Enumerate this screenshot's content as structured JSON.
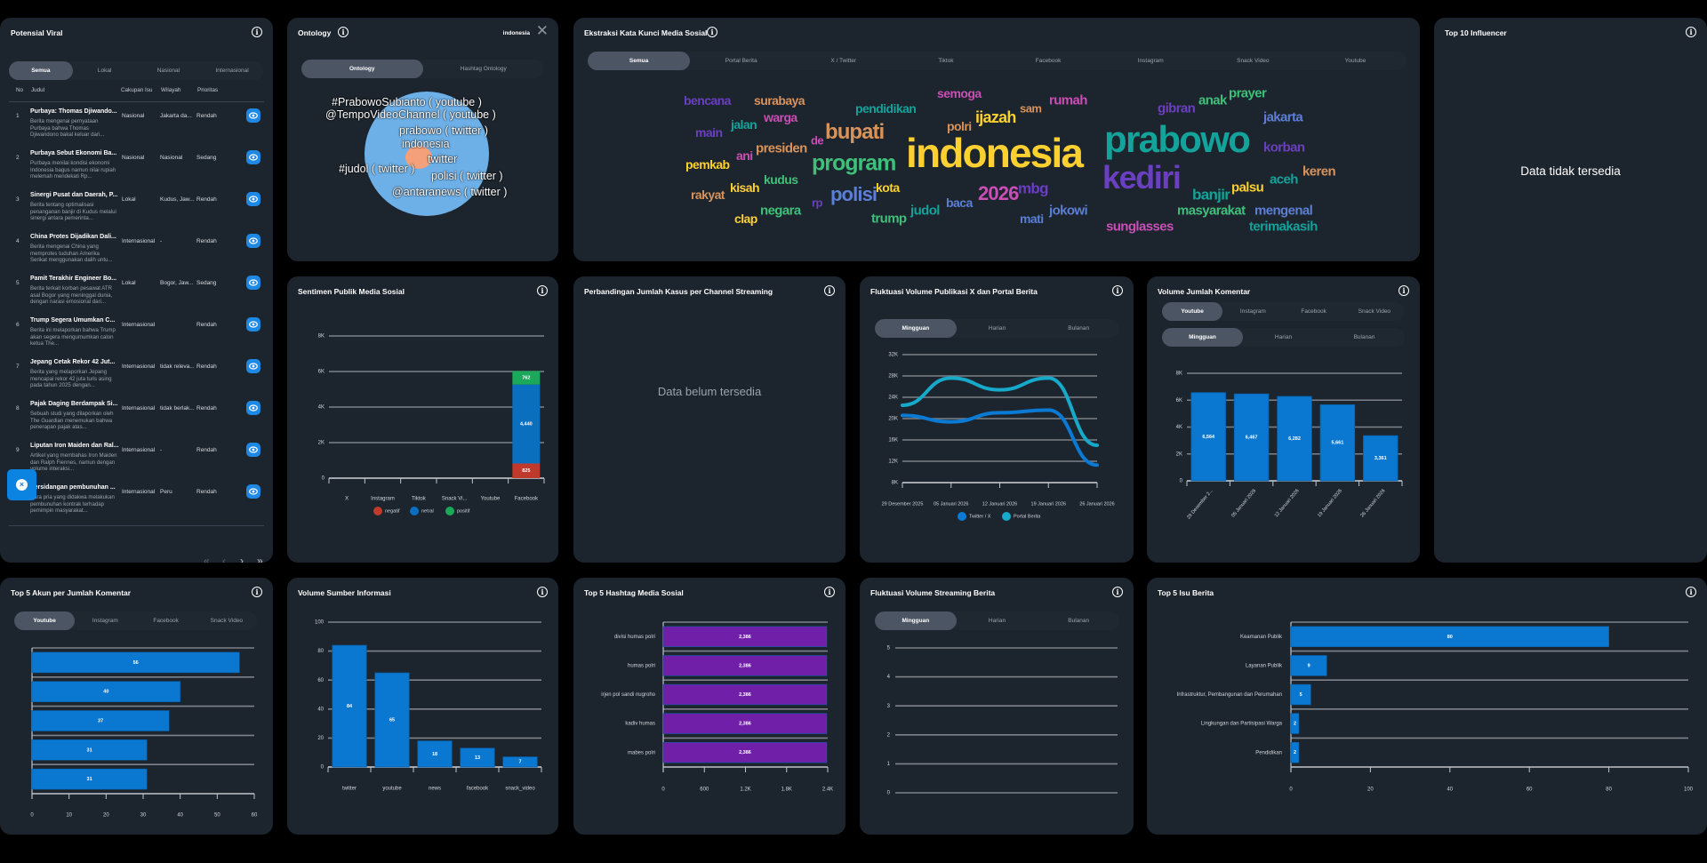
{
  "potensial_viral": {
    "title": "Potensial Viral",
    "tabs": [
      "Semua",
      "Lokal",
      "Nasional",
      "Internasional"
    ],
    "columns": [
      "No",
      "Judul",
      "Cakupan Isu",
      "Wilayah",
      "Prioritas"
    ],
    "rows": [
      {
        "no": "1",
        "title": "Purbaya: Thomas Djiwando...",
        "desc": "Berita mengenai pernyataan Purbaya bahwa Thomas Djiwandono bakal keluar dari...",
        "cakupan": "Nasional",
        "wilayah": "Jakarta da...",
        "prioritas": "Rendah"
      },
      {
        "no": "2",
        "title": "Purbaya Sebut Ekonomi Ba...",
        "desc": "Purbaya menilai kondisi ekonomi Indonesia bagus namun nilai rupiah melemah mendekati Rp...",
        "cakupan": "Nasional",
        "wilayah": "Nasional",
        "prioritas": "Sedang"
      },
      {
        "no": "3",
        "title": "Sinergi Pusat dan Daerah, P...",
        "desc": "Berita tentang optimalisasi penanganan banjir di Kudus melalui sinergi antara pemerinta...",
        "cakupan": "Lokal",
        "wilayah": "Kudus, Jaw...",
        "prioritas": "Rendah"
      },
      {
        "no": "4",
        "title": "China Protes Dijadikan Dali...",
        "desc": "Berita mengenai China yang memprotes tuduhan Amerika Serikat menggunakan dalih untu...",
        "cakupan": "Internasional",
        "wilayah": "-",
        "prioritas": "Rendah"
      },
      {
        "no": "5",
        "title": "Pamit Terakhir Engineer Bo...",
        "desc": "Berita terkait korban pesawat ATR asal Bogor yang meninggal dunia, dengan narasi emosional dari...",
        "cakupan": "Lokal",
        "wilayah": "Bogor, Jaw...",
        "prioritas": "Sedang"
      },
      {
        "no": "6",
        "title": "Trump Segera Umumkan C...",
        "desc": "Berita ini melaporkan bahwa Trump akan segera mengumumkan calon ketua The...",
        "cakupan": "Internasional",
        "wilayah": "",
        "prioritas": "Rendah"
      },
      {
        "no": "7",
        "title": "Jepang Cetak Rekor 42 Jut...",
        "desc": "Berita yang melaporkan Jepang mencapai rekor 42 juta turis asing pada tahun 2025 dengan...",
        "cakupan": "Internasional",
        "wilayah": "tidak releva...",
        "prioritas": "Rendah"
      },
      {
        "no": "8",
        "title": "Pajak Daging Berdampak Si...",
        "desc": "Sebuah studi yang dilaporkan oleh The Guardian menemukan bahwa penerapan pajak atas...",
        "cakupan": "Internasional",
        "wilayah": "tidak berlak...",
        "prioritas": "Rendah"
      },
      {
        "no": "9",
        "title": "Liputan Iron Maiden dan Ral...",
        "desc": "Artikel yang membahas Iron Maiden dan Ralph Fiennes, namun dengan volume interaksi...",
        "cakupan": "Internasional",
        "wilayah": "-",
        "prioritas": "Rendah"
      },
      {
        "no": "10",
        "title": "Persidangan pembunuhan ...",
        "desc": "Para pria yang didakwa melakukan pembunuhan kontrak terhadap pemimpin masyarakat...",
        "cakupan": "Internasional",
        "wilayah": "Peru",
        "prioritas": "Rendah"
      }
    ],
    "pagination": {
      "first": "«",
      "prev": "‹",
      "next": "›",
      "last": "»"
    }
  },
  "ontology": {
    "title": "Ontology",
    "keyword": "indonesia",
    "tabs": [
      "Ontology",
      "Hashtag Ontology"
    ],
    "labels": [
      "#PrabowoSubianto ( youtube )",
      "@TempoVideoChannel ( youtube )",
      "prabowo ( twitter )",
      "indonesia",
      "twitter",
      "#judol ( twitter )",
      "polisi ( twitter )",
      "@antaranews ( twitter )"
    ],
    "colors": {
      "outer": "#6db0e8",
      "inner": "#f4a07a"
    }
  },
  "ekstraksi": {
    "title": "Ekstraksi Kata Kunci Media Sosial",
    "tabs": [
      "Semua",
      "Portal Berita",
      "X / Twitter",
      "Tiktok",
      "Facebook",
      "Instagram",
      "Snack Video",
      "Youtube"
    ],
    "words": [
      {
        "text": "bencana",
        "color": "#6a3fc0"
      },
      {
        "text": "surabaya",
        "color": "#d9935a"
      },
      {
        "text": "pendidikan",
        "color": "#14a39a"
      },
      {
        "text": "semoga",
        "color": "#c94fb7"
      },
      {
        "text": "sam",
        "color": "#d9935a"
      },
      {
        "text": "rumah",
        "color": "#c94fb7"
      },
      {
        "text": "warga",
        "color": "#c94fb7"
      },
      {
        "text": "jalan",
        "color": "#14a39a"
      },
      {
        "text": "ijazah",
        "color": "#fdd032"
      },
      {
        "text": "polri",
        "color": "#d9935a"
      },
      {
        "text": "main",
        "color": "#6a3fc0"
      },
      {
        "text": "bupati",
        "color": "#d9935a"
      },
      {
        "text": "de",
        "color": "#c94fb7"
      },
      {
        "text": "presiden",
        "color": "#d9935a"
      },
      {
        "text": "indonesia",
        "color": "#fdd032"
      },
      {
        "text": "ani",
        "color": "#c94fb7"
      },
      {
        "text": "program",
        "color": "#3fc07a"
      },
      {
        "text": "pemkab",
        "color": "#fdd032"
      },
      {
        "text": "kudus",
        "color": "#3fc07a"
      },
      {
        "text": "kisah",
        "color": "#fdd032"
      },
      {
        "text": "rakyat",
        "color": "#d9935a"
      },
      {
        "text": "polisi",
        "color": "#5b7fd6"
      },
      {
        "text": "kota",
        "color": "#fdd032"
      },
      {
        "text": "2026",
        "color": "#c94fb7"
      },
      {
        "text": "mbg",
        "color": "#6a3fc0"
      },
      {
        "text": "rp",
        "color": "#6a3fc0"
      },
      {
        "text": "baca",
        "color": "#5b7fd6"
      },
      {
        "text": "judol",
        "color": "#14a39a"
      },
      {
        "text": "jokowi",
        "color": "#5b7fd6"
      },
      {
        "text": "negara",
        "color": "#3fc07a"
      },
      {
        "text": "trump",
        "color": "#3fc07a"
      },
      {
        "text": "clap",
        "color": "#fdd032"
      },
      {
        "text": "mati",
        "color": "#5b7fd6"
      },
      {
        "text": "prabowo",
        "color": "#14a39a"
      },
      {
        "text": "kediri",
        "color": "#6a3fc0"
      },
      {
        "text": "gibran",
        "color": "#6a3fc0"
      },
      {
        "text": "anak",
        "color": "#3fc07a"
      },
      {
        "text": "prayer",
        "color": "#3fc07a"
      },
      {
        "text": "jakarta",
        "color": "#5b7fd6"
      },
      {
        "text": "korban",
        "color": "#6a3fc0"
      },
      {
        "text": "aceh",
        "color": "#14a39a"
      },
      {
        "text": "keren",
        "color": "#d9935a"
      },
      {
        "text": "palsu",
        "color": "#fdd032"
      },
      {
        "text": "banjir",
        "color": "#14a39a"
      },
      {
        "text": "masyarakat",
        "color": "#3fc07a"
      },
      {
        "text": "mengenal",
        "color": "#5b7fd6"
      },
      {
        "text": "sunglasses",
        "color": "#c94fb7"
      },
      {
        "text": "terimakasih",
        "color": "#14a39a"
      }
    ]
  },
  "influencer": {
    "title": "Top 10 Influencer",
    "empty": "Data tidak tersedia"
  },
  "perbandingan": {
    "title": "Perbandingan Jumlah Kasus per Channel Streaming",
    "empty": "Data belum tersedia"
  },
  "chart_data": [
    {
      "title": "Sentimen Publik Media Sosial",
      "type": "bar",
      "stacked": true,
      "categories": [
        "X",
        "Instagram",
        "Tiktok",
        "Snack Vi...",
        "Youtube",
        "Facebook"
      ],
      "series": [
        {
          "name": "negatif",
          "color": "#c0392b",
          "values": [
            0,
            0,
            0,
            0,
            0,
            825
          ]
        },
        {
          "name": "netral",
          "color": "#0a6fbf",
          "values": [
            0,
            0,
            0,
            0,
            0,
            4440
          ]
        },
        {
          "name": "positif",
          "color": "#1aa85a",
          "values": [
            0,
            0,
            0,
            0,
            0,
            762
          ]
        }
      ],
      "ylim": [
        0,
        8000
      ],
      "yticks": [
        0,
        2000,
        4000,
        6000,
        8000
      ],
      "ytick_labels": [
        "0",
        "2K",
        "4K",
        "6K",
        "8K"
      ],
      "legend": "bottom",
      "grid": true
    },
    {
      "title": "Fluktuasi Volume Publikasi X dan Portal Berita",
      "type": "line",
      "tabs": [
        "Mingguan",
        "Harian",
        "Bulanan"
      ],
      "categories": [
        "29 Desember 2025",
        "05 Januari 2026",
        "12 Januari 2026",
        "19 Januari 2026",
        "26 Januari 2026"
      ],
      "series": [
        {
          "name": "Twitter / X",
          "color": "#0b7ad4",
          "values": [
            20600,
            19400,
            21100,
            21600,
            11300
          ]
        },
        {
          "name": "Portal Berita",
          "color": "#16a9c9",
          "values": [
            22500,
            27600,
            25400,
            27600,
            15000
          ]
        }
      ],
      "ylim": [
        8000,
        32000
      ],
      "yticks": [
        8000,
        12000,
        16000,
        20000,
        24000,
        28000,
        32000
      ],
      "ytick_labels": [
        "8K",
        "12K",
        "16K",
        "20K",
        "24K",
        "28K",
        "32K"
      ],
      "legend": "bottom",
      "grid": true
    },
    {
      "title": "Volume Jumlah Komentar",
      "type": "bar",
      "platform_tabs": [
        "Youtube",
        "Instagram",
        "Facebook",
        "Snack Video"
      ],
      "tabs": [
        "Mingguan",
        "Harian",
        "Bulanan"
      ],
      "categories": [
        "29 Desember 2...",
        "05 Januari 2026",
        "12 Januari 2026",
        "19 Januari 2026",
        "26 Januari 2026"
      ],
      "values": [
        6564,
        6467,
        6282,
        5661,
        3361
      ],
      "color": "#0a78d0",
      "ylim": [
        0,
        8000
      ],
      "yticks": [
        0,
        2000,
        4000,
        6000,
        8000
      ],
      "ytick_labels": [
        "0",
        "2K",
        "4K",
        "6K",
        "8K"
      ],
      "grid": true
    },
    {
      "title": "Top 5 Akun per Jumlah Komentar",
      "type": "bar",
      "orientation": "horizontal",
      "tabs": [
        "Youtube",
        "Instagram",
        "Facebook",
        "Snack Video"
      ],
      "categories": [
        "",
        "",
        "",
        "",
        ""
      ],
      "values": [
        56,
        40,
        37,
        31,
        31
      ],
      "color": "#0a78d0",
      "xlim": [
        0,
        60
      ],
      "xticks": [
        0,
        10,
        20,
        30,
        40,
        50,
        60
      ],
      "xtick_labels": [
        "0",
        "10",
        "20",
        "30",
        "40",
        "50",
        "60"
      ],
      "grid": true
    },
    {
      "title": "Volume Sumber Informasi",
      "type": "bar",
      "categories": [
        "twitter",
        "youtube",
        "news",
        "facebook",
        "snack_video"
      ],
      "values": [
        84,
        65,
        18,
        13,
        7
      ],
      "color": "#0a78d0",
      "ylim": [
        0,
        100
      ],
      "yticks": [
        0,
        20,
        40,
        60,
        80,
        100
      ],
      "ytick_labels": [
        "0",
        "20",
        "40",
        "60",
        "80",
        "100"
      ],
      "grid": true
    },
    {
      "title": "Top 5 Hashtag Media Sosial",
      "type": "bar",
      "orientation": "horizontal",
      "categories": [
        "divisi humas polri",
        "humas polri",
        "irjen pol sandi nugroho",
        "kadiv humas",
        "mabes polri"
      ],
      "values": [
        2386,
        2386,
        2386,
        2386,
        2386
      ],
      "color": "#7020a8",
      "xlim": [
        0,
        2400
      ],
      "xticks": [
        0,
        600,
        1200,
        1800,
        2400
      ],
      "xtick_labels": [
        "0",
        "600",
        "1.2K",
        "1.8K",
        "2.4K"
      ],
      "grid": true
    },
    {
      "title": "Fluktuasi Volume Streaming Berita",
      "type": "line",
      "tabs": [
        "Mingguan",
        "Harian",
        "Bulanan"
      ],
      "series": [],
      "ylim": [
        0,
        5
      ],
      "yticks": [
        0,
        1,
        2,
        3,
        4,
        5
      ],
      "ytick_labels": [
        "0",
        "1",
        "2",
        "3",
        "4",
        "5"
      ],
      "grid": true
    },
    {
      "title": "Top 5 Isu Berita",
      "type": "bar",
      "orientation": "horizontal",
      "categories": [
        "Keamanan Publik",
        "Layanan Publik",
        "Infrastruktur, Pembangunan dan Perumahan",
        "Lingkungan dan Partisipasi Warga",
        "Pendidikan"
      ],
      "values": [
        80,
        9,
        5,
        2,
        2
      ],
      "color": "#0a78d0",
      "xlim": [
        0,
        100
      ],
      "xticks": [
        0,
        20,
        40,
        60,
        80,
        100
      ],
      "xtick_labels": [
        "0",
        "20",
        "40",
        "60",
        "80",
        "100"
      ],
      "grid": true
    }
  ]
}
